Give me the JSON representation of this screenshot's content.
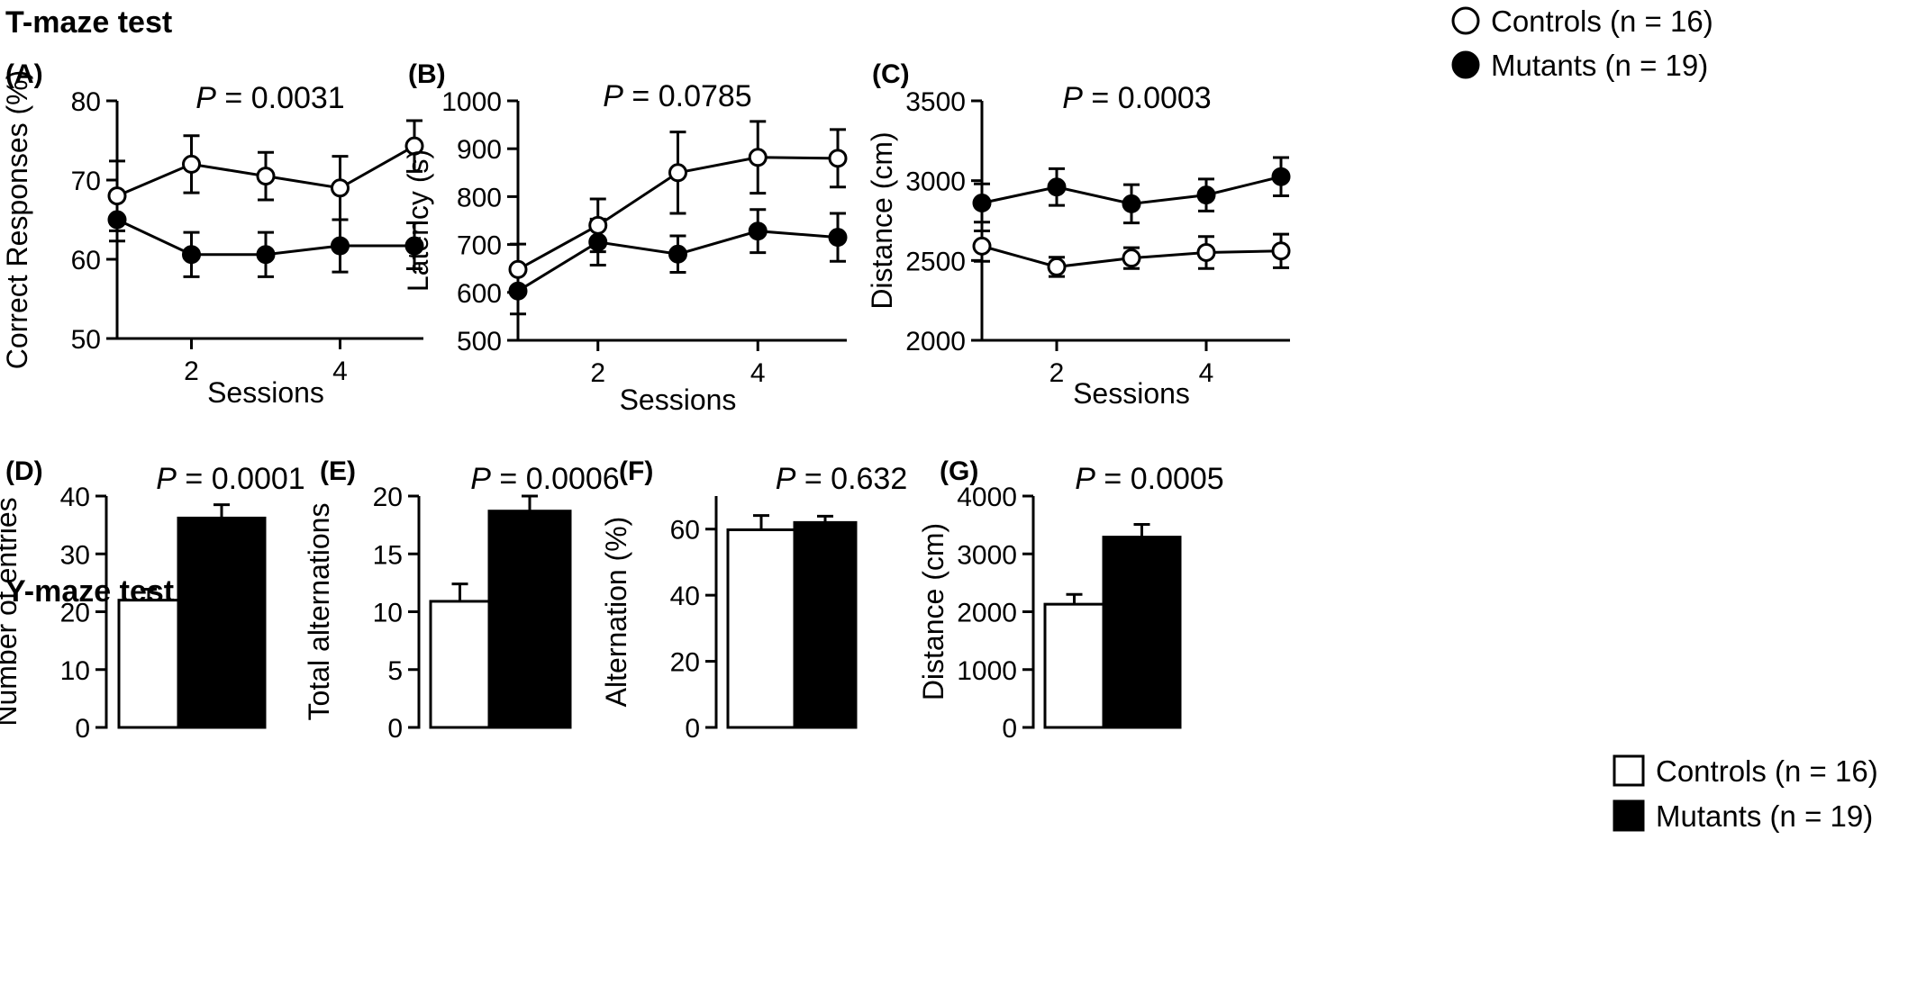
{
  "sections": {
    "tmaze": "T-maze test",
    "ymaze": "Y-maze test"
  },
  "legend_line": {
    "controls": "Controls (n = 16)",
    "mutants": "Mutants (n = 19)"
  },
  "legend_bar": {
    "controls": "Controls (n = 16)",
    "mutants": "Mutants (n = 19)"
  },
  "colors": {
    "controls": "#ffffff",
    "mutants": "#000000",
    "axis": "#000000"
  },
  "chart_data": [
    {
      "id": "A",
      "panel_label": "(A)",
      "type": "line",
      "title": "",
      "ptext": "P",
      "pvalue": "= 0.0031",
      "xlabel": "Sessions",
      "ylabel": "Correct Responses (%)",
      "x": [
        1,
        2,
        3,
        4,
        5
      ],
      "xticks": [
        "2",
        "4"
      ],
      "xtick_values": [
        2,
        4
      ],
      "ylim": [
        50,
        80
      ],
      "yticks": [
        "50",
        "60",
        "70",
        "80"
      ],
      "ytick_values": [
        50,
        60,
        70,
        80
      ],
      "series": [
        {
          "name": "Controls (n = 16)",
          "values": [
            68,
            72,
            70.5,
            69,
            74.3
          ],
          "err": [
            4.4,
            3.6,
            3.0,
            4.0,
            3.2
          ]
        },
        {
          "name": "Mutants (n = 19)",
          "values": [
            65,
            60.6,
            60.6,
            61.7,
            61.7
          ],
          "err": [
            2.7,
            2.8,
            2.8,
            3.3,
            2.9
          ]
        }
      ]
    },
    {
      "id": "B",
      "panel_label": "(B)",
      "type": "line",
      "title": "",
      "ptext": "P",
      "pvalue": "= 0.0785",
      "xlabel": "Sessions",
      "ylabel": "Latency (s)",
      "x": [
        1,
        2,
        3,
        4,
        5
      ],
      "xticks": [
        "2",
        "4"
      ],
      "xtick_values": [
        2,
        4
      ],
      "ylim": [
        500,
        1000
      ],
      "yticks": [
        "500",
        "600",
        "700",
        "800",
        "900",
        "1000"
      ],
      "ytick_values": [
        500,
        600,
        700,
        800,
        900,
        1000
      ],
      "series": [
        {
          "name": "Controls (n = 16)",
          "values": [
            648,
            740,
            850,
            882,
            880
          ],
          "err": [
            53,
            55,
            85,
            75,
            60
          ]
        },
        {
          "name": "Mutants (n = 19)",
          "values": [
            603,
            705,
            680,
            728,
            715
          ],
          "err": [
            48,
            48,
            38,
            45,
            50
          ]
        }
      ]
    },
    {
      "id": "C",
      "panel_label": "(C)",
      "type": "line",
      "title": "",
      "ptext": "P",
      "pvalue": "= 0.0003",
      "xlabel": "Sessions",
      "ylabel": "Distance (cm)",
      "x": [
        1,
        2,
        3,
        4,
        5
      ],
      "xticks": [
        "2",
        "4"
      ],
      "xtick_values": [
        2,
        4
      ],
      "ylim": [
        2000,
        3500
      ],
      "yticks": [
        "2000",
        "2500",
        "3000",
        "3500"
      ],
      "ytick_values": [
        2000,
        2500,
        3000,
        3500
      ],
      "series": [
        {
          "name": "Controls (n = 16)",
          "values": [
            2590,
            2460,
            2515,
            2550,
            2560
          ],
          "err": [
            95,
            60,
            65,
            100,
            105
          ]
        },
        {
          "name": "Mutants (n = 19)",
          "values": [
            2860,
            2960,
            2855,
            2910,
            3025
          ],
          "err": [
            120,
            115,
            120,
            100,
            120
          ]
        }
      ]
    },
    {
      "id": "D",
      "panel_label": "(D)",
      "type": "bar",
      "title": "",
      "ptext": "P",
      "pvalue": "= 0.0001",
      "xlabel": "",
      "ylabel": "Number of entries",
      "ylim": [
        0,
        40
      ],
      "yticks": [
        "0",
        "10",
        "20",
        "30",
        "40"
      ],
      "ytick_values": [
        0,
        10,
        20,
        30,
        40
      ],
      "categories": [
        "Controls (n = 16)",
        "Mutants (n = 19)"
      ],
      "values": [
        22,
        36.2
      ],
      "err": [
        1.9,
        2.3
      ]
    },
    {
      "id": "E",
      "panel_label": "(E)",
      "type": "bar",
      "title": "",
      "ptext": "P",
      "pvalue": "= 0.0006",
      "xlabel": "",
      "ylabel": "Total alternations",
      "ylim": [
        0,
        20
      ],
      "yticks": [
        "0",
        "5",
        "10",
        "15",
        "20"
      ],
      "ytick_values": [
        0,
        5,
        10,
        15,
        20
      ],
      "categories": [
        "Controls (n = 16)",
        "Mutants (n = 19)"
      ],
      "values": [
        10.9,
        18.7
      ],
      "err": [
        1.5,
        1.3
      ]
    },
    {
      "id": "F",
      "panel_label": "(F)",
      "type": "bar",
      "title": "",
      "ptext": "P",
      "pvalue": "= 0.632",
      "xlabel": "",
      "ylabel": "Alternation (%)",
      "ylim": [
        0,
        70
      ],
      "yticks": [
        "0",
        "20",
        "40",
        "60"
      ],
      "ytick_values": [
        0,
        20,
        40,
        60
      ],
      "categories": [
        "Controls (n = 16)",
        "Mutants (n = 19)"
      ],
      "values": [
        59.8,
        62
      ],
      "err": [
        4.3,
        1.9
      ]
    },
    {
      "id": "G",
      "panel_label": "(G)",
      "type": "bar",
      "title": "",
      "ptext": "P",
      "pvalue": "= 0.0005",
      "xlabel": "",
      "ylabel": "Distance (cm)",
      "ylim": [
        0,
        4000
      ],
      "yticks": [
        "0",
        "1000",
        "2000",
        "3000",
        "4000"
      ],
      "ytick_values": [
        0,
        1000,
        2000,
        3000,
        4000
      ],
      "categories": [
        "Controls (n = 16)",
        "Mutants (n = 19)"
      ],
      "values": [
        2130,
        3290
      ],
      "err": [
        170,
        220
      ]
    }
  ]
}
